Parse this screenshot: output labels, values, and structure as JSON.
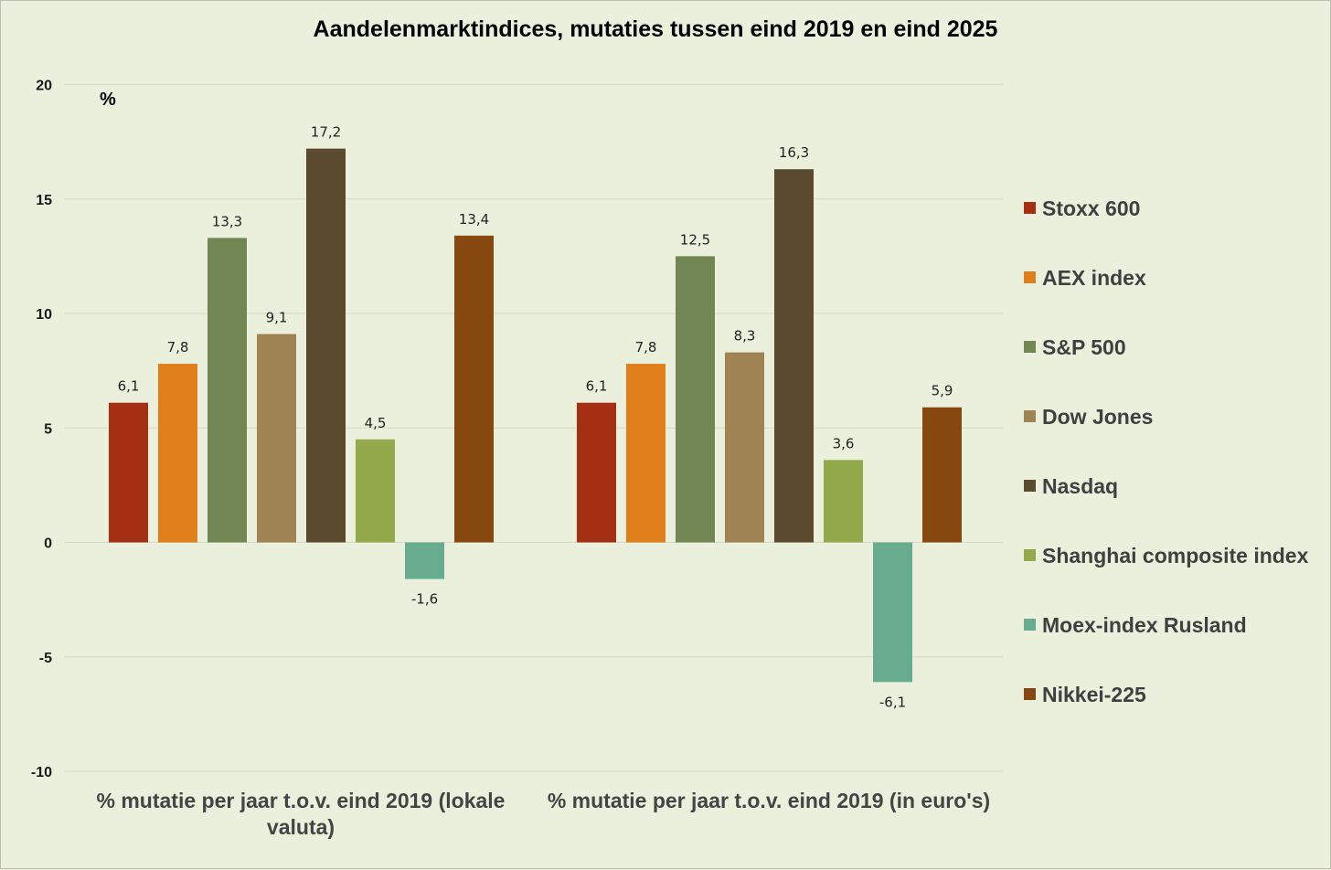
{
  "chart_data": {
    "type": "bar",
    "title": "Aandelenmarktindices, mutaties tussen eind 2019 en eind 2025",
    "ylabel": "%",
    "ylim": [
      -10,
      20
    ],
    "yticks": [
      "20",
      "15",
      "10",
      "5",
      "0",
      "-5",
      "-10"
    ],
    "categories": [
      [
        "% mutatie per jaar t.o.v. eind 2019 (lokale",
        "valuta)"
      ],
      [
        "% mutatie per jaar t.o.v. eind 2019 (in euro's)"
      ]
    ],
    "series": [
      {
        "name": "Stoxx 600",
        "color": "#a52f12",
        "values": [
          6.1,
          6.1
        ],
        "labels": [
          "6,1",
          "6,1"
        ]
      },
      {
        "name": "AEX index",
        "color": "#df7e1a",
        "values": [
          7.8,
          7.8
        ],
        "labels": [
          "7,8",
          "7,8"
        ]
      },
      {
        "name": "S&P 500",
        "color": "#718652",
        "values": [
          13.3,
          12.5
        ],
        "labels": [
          "13,3",
          "12,5"
        ]
      },
      {
        "name": "Dow Jones",
        "color": "#a08352",
        "values": [
          9.1,
          8.3
        ],
        "labels": [
          "9,1",
          "8,3"
        ]
      },
      {
        "name": "Nasdaq",
        "color": "#5b4b2e",
        "values": [
          17.2,
          16.3
        ],
        "labels": [
          "17,2",
          "16,3"
        ]
      },
      {
        "name": "Shanghai composite index",
        "color": "#93aa4c",
        "values": [
          4.5,
          3.6
        ],
        "labels": [
          "4,5",
          "3,6"
        ]
      },
      {
        "name": "Moex-index Rusland",
        "color": "#67ac8f",
        "values": [
          -1.6,
          -6.1
        ],
        "labels": [
          "-1,6",
          "-6,1"
        ]
      },
      {
        "name": "Nikkei-225",
        "color": "#86480f",
        "values": [
          13.4,
          5.9
        ],
        "labels": [
          "13,4",
          "5,9"
        ]
      }
    ]
  }
}
